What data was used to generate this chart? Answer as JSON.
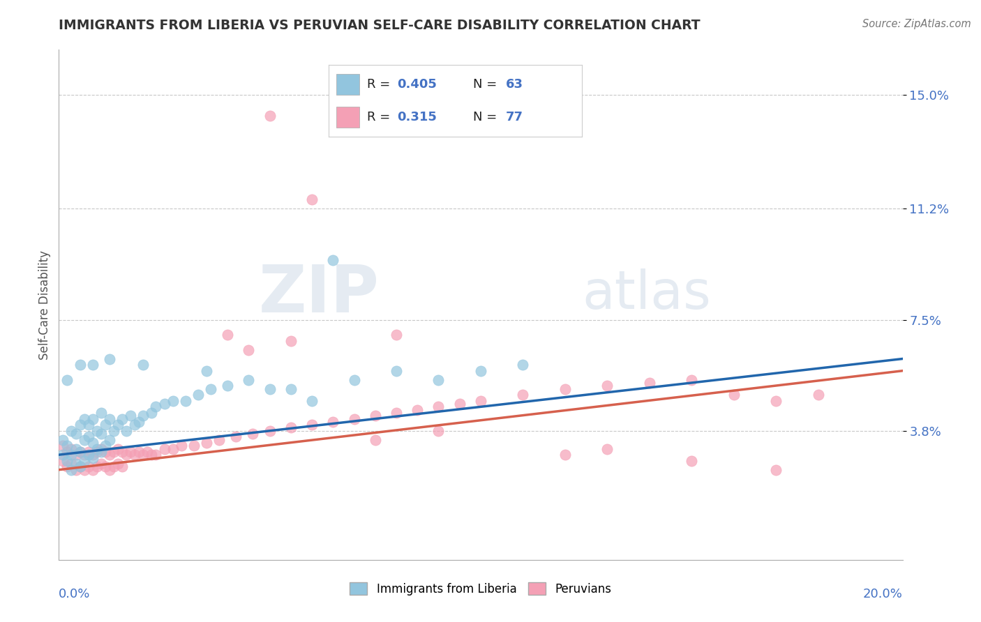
{
  "title": "IMMIGRANTS FROM LIBERIA VS PERUVIAN SELF-CARE DISABILITY CORRELATION CHART",
  "source": "Source: ZipAtlas.com",
  "xlabel_blue": "Immigrants from Liberia",
  "xlabel_pink": "Peruvians",
  "ylabel": "Self-Care Disability",
  "xlim": [
    0.0,
    0.2
  ],
  "ylim": [
    -0.005,
    0.165
  ],
  "yticks": [
    0.038,
    0.075,
    0.112,
    0.15
  ],
  "ytick_labels": [
    "3.8%",
    "7.5%",
    "11.2%",
    "15.0%"
  ],
  "blue_R": 0.405,
  "blue_N": 63,
  "pink_R": 0.315,
  "pink_N": 77,
  "blue_color": "#92c5de",
  "pink_color": "#f4a0b5",
  "blue_line_color": "#2166ac",
  "pink_line_color": "#d6604d",
  "watermark_zip": "ZIP",
  "watermark_atlas": "atlas",
  "grid_color": "#c8c8c8",
  "title_color": "#333333",
  "axis_label_color": "#555555",
  "tick_label_color": "#4472c4",
  "background_color": "#ffffff",
  "blue_scatter_x": [
    0.001,
    0.001,
    0.002,
    0.002,
    0.003,
    0.003,
    0.003,
    0.004,
    0.004,
    0.004,
    0.005,
    0.005,
    0.005,
    0.006,
    0.006,
    0.006,
    0.007,
    0.007,
    0.007,
    0.008,
    0.008,
    0.008,
    0.009,
    0.009,
    0.01,
    0.01,
    0.01,
    0.011,
    0.011,
    0.012,
    0.012,
    0.013,
    0.014,
    0.015,
    0.016,
    0.017,
    0.018,
    0.019,
    0.02,
    0.022,
    0.023,
    0.025,
    0.027,
    0.03,
    0.033,
    0.036,
    0.04,
    0.045,
    0.05,
    0.055,
    0.06,
    0.07,
    0.08,
    0.09,
    0.1,
    0.11,
    0.002,
    0.005,
    0.008,
    0.012,
    0.02,
    0.035,
    0.065
  ],
  "blue_scatter_y": [
    0.03,
    0.035,
    0.028,
    0.033,
    0.025,
    0.03,
    0.038,
    0.027,
    0.032,
    0.037,
    0.026,
    0.031,
    0.04,
    0.028,
    0.035,
    0.042,
    0.03,
    0.036,
    0.04,
    0.029,
    0.034,
    0.042,
    0.032,
    0.038,
    0.031,
    0.037,
    0.044,
    0.033,
    0.04,
    0.035,
    0.042,
    0.038,
    0.04,
    0.042,
    0.038,
    0.043,
    0.04,
    0.041,
    0.043,
    0.044,
    0.046,
    0.047,
    0.048,
    0.048,
    0.05,
    0.052,
    0.053,
    0.055,
    0.052,
    0.052,
    0.048,
    0.055,
    0.058,
    0.055,
    0.058,
    0.06,
    0.055,
    0.06,
    0.06,
    0.062,
    0.06,
    0.058,
    0.095
  ],
  "pink_scatter_x": [
    0.001,
    0.001,
    0.002,
    0.002,
    0.003,
    0.003,
    0.004,
    0.004,
    0.005,
    0.005,
    0.006,
    0.006,
    0.007,
    0.007,
    0.008,
    0.008,
    0.009,
    0.009,
    0.01,
    0.01,
    0.011,
    0.011,
    0.012,
    0.012,
    0.013,
    0.013,
    0.014,
    0.014,
    0.015,
    0.015,
    0.016,
    0.017,
    0.018,
    0.019,
    0.02,
    0.021,
    0.022,
    0.023,
    0.025,
    0.027,
    0.029,
    0.032,
    0.035,
    0.038,
    0.042,
    0.046,
    0.05,
    0.055,
    0.06,
    0.065,
    0.07,
    0.075,
    0.08,
    0.085,
    0.09,
    0.095,
    0.1,
    0.11,
    0.12,
    0.13,
    0.14,
    0.15,
    0.16,
    0.17,
    0.18,
    0.055,
    0.08,
    0.04,
    0.06,
    0.045,
    0.13,
    0.15,
    0.17,
    0.12,
    0.09,
    0.075,
    0.05
  ],
  "pink_scatter_y": [
    0.028,
    0.033,
    0.026,
    0.031,
    0.027,
    0.032,
    0.025,
    0.03,
    0.026,
    0.031,
    0.025,
    0.03,
    0.026,
    0.031,
    0.025,
    0.03,
    0.026,
    0.031,
    0.027,
    0.032,
    0.026,
    0.031,
    0.025,
    0.03,
    0.026,
    0.031,
    0.027,
    0.032,
    0.026,
    0.031,
    0.03,
    0.031,
    0.03,
    0.031,
    0.03,
    0.031,
    0.03,
    0.03,
    0.032,
    0.032,
    0.033,
    0.033,
    0.034,
    0.035,
    0.036,
    0.037,
    0.038,
    0.039,
    0.04,
    0.041,
    0.042,
    0.043,
    0.044,
    0.045,
    0.046,
    0.047,
    0.048,
    0.05,
    0.052,
    0.053,
    0.054,
    0.055,
    0.05,
    0.048,
    0.05,
    0.068,
    0.07,
    0.07,
    0.115,
    0.065,
    0.032,
    0.028,
    0.025,
    0.03,
    0.038,
    0.035,
    0.143
  ],
  "blue_trend_x": [
    0.0,
    0.2
  ],
  "blue_trend_y": [
    0.03,
    0.062
  ],
  "pink_trend_x": [
    0.0,
    0.2
  ],
  "pink_trend_y": [
    0.025,
    0.058
  ]
}
